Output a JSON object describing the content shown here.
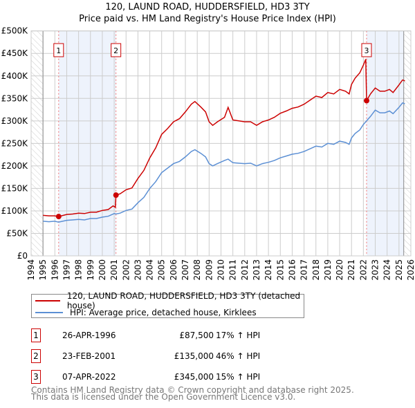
{
  "chart_data": {
    "type": "line",
    "title": "120, LAUND ROAD, HUDDERSFIELD, HD3 3TY",
    "subtitle": "Price paid vs. HM Land Registry's House Price Index (HPI)",
    "xlim": [
      1994,
      2026
    ],
    "ylim": [
      0,
      500000
    ],
    "x_ticks": [
      "1994",
      "1995",
      "1996",
      "1997",
      "1998",
      "1999",
      "2000",
      "2001",
      "2002",
      "2003",
      "2004",
      "2005",
      "2006",
      "2007",
      "2008",
      "2009",
      "2010",
      "2011",
      "2012",
      "2013",
      "2014",
      "2015",
      "2016",
      "2017",
      "2018",
      "2019",
      "2020",
      "2021",
      "2022",
      "2023",
      "2024",
      "2025",
      "2026"
    ],
    "y_ticks": [
      {
        "v": 0,
        "label": "£0"
      },
      {
        "v": 50000,
        "label": "£50K"
      },
      {
        "v": 100000,
        "label": "£100K"
      },
      {
        "v": 150000,
        "label": "£150K"
      },
      {
        "v": 200000,
        "label": "£200K"
      },
      {
        "v": 250000,
        "label": "£250K"
      },
      {
        "v": 300000,
        "label": "£300K"
      },
      {
        "v": 350000,
        "label": "£350K"
      },
      {
        "v": 400000,
        "label": "£400K"
      },
      {
        "v": 450000,
        "label": "£450K"
      },
      {
        "v": 500000,
        "label": "£500K"
      }
    ],
    "grid": true,
    "series": [
      {
        "name": "120, LAUND ROAD, HUDDERSFIELD, HD3 3TY (detached house)",
        "color": "#cc0000",
        "points": [
          [
            1995,
            90
          ],
          [
            1995.5,
            89
          ],
          [
            1996.0,
            89
          ],
          [
            1996.32,
            87.5
          ],
          [
            1997,
            92
          ],
          [
            1997.5,
            93
          ],
          [
            1998,
            95
          ],
          [
            1998.5,
            94
          ],
          [
            1999,
            97
          ],
          [
            1999.5,
            97
          ],
          [
            2000,
            101
          ],
          [
            2000.5,
            103
          ],
          [
            2000.9,
            111
          ],
          [
            2001.1,
            108
          ],
          [
            2001.15,
            135
          ],
          [
            2001.5,
            138
          ],
          [
            2002,
            147
          ],
          [
            2002.5,
            151
          ],
          [
            2003,
            172
          ],
          [
            2003.5,
            190
          ],
          [
            2004,
            218
          ],
          [
            2004.5,
            240
          ],
          [
            2005,
            270
          ],
          [
            2005.5,
            283
          ],
          [
            2006,
            298
          ],
          [
            2006.5,
            305
          ],
          [
            2007,
            320
          ],
          [
            2007.5,
            337
          ],
          [
            2007.8,
            343
          ],
          [
            2008.3,
            331
          ],
          [
            2008.7,
            320
          ],
          [
            2009,
            298
          ],
          [
            2009.3,
            290
          ],
          [
            2009.7,
            298
          ],
          [
            2010.3,
            308
          ],
          [
            2010.6,
            330
          ],
          [
            2011,
            302
          ],
          [
            2011.5,
            300
          ],
          [
            2012,
            298
          ],
          [
            2012.5,
            298
          ],
          [
            2013,
            290
          ],
          [
            2013.5,
            298
          ],
          [
            2014,
            302
          ],
          [
            2014.5,
            308
          ],
          [
            2015,
            317
          ],
          [
            2015.5,
            322
          ],
          [
            2016,
            328
          ],
          [
            2016.5,
            331
          ],
          [
            2017,
            337
          ],
          [
            2017.5,
            346
          ],
          [
            2018,
            355
          ],
          [
            2018.5,
            352
          ],
          [
            2019,
            363
          ],
          [
            2019.5,
            360
          ],
          [
            2020,
            370
          ],
          [
            2020.5,
            366
          ],
          [
            2020.8,
            360
          ],
          [
            2021,
            381
          ],
          [
            2021.3,
            395
          ],
          [
            2021.7,
            407
          ],
          [
            2022,
            424
          ],
          [
            2022.2,
            437
          ],
          [
            2022.27,
            345
          ],
          [
            2022.6,
            360
          ],
          [
            2023,
            373
          ],
          [
            2023.4,
            366
          ],
          [
            2023.8,
            366
          ],
          [
            2024.2,
            370
          ],
          [
            2024.5,
            363
          ],
          [
            2025,
            380
          ],
          [
            2025.3,
            391
          ],
          [
            2025.5,
            389
          ]
        ]
      },
      {
        "name": "HPI: Average price, detached house, Kirklees",
        "color": "#5b8fd4",
        "points": [
          [
            1995,
            77
          ],
          [
            1995.5,
            76
          ],
          [
            1996,
            77
          ],
          [
            1996.3,
            75
          ],
          [
            1997,
            79
          ],
          [
            1997.5,
            80
          ],
          [
            1998,
            81
          ],
          [
            1998.5,
            80
          ],
          [
            1999,
            83
          ],
          [
            1999.5,
            83
          ],
          [
            2000,
            86
          ],
          [
            2000.5,
            88
          ],
          [
            2001,
            94
          ],
          [
            2001.15,
            93
          ],
          [
            2001.5,
            95
          ],
          [
            2002,
            101
          ],
          [
            2002.5,
            104
          ],
          [
            2003,
            118
          ],
          [
            2003.5,
            130
          ],
          [
            2004,
            150
          ],
          [
            2004.5,
            165
          ],
          [
            2005,
            185
          ],
          [
            2005.5,
            195
          ],
          [
            2006,
            205
          ],
          [
            2006.5,
            210
          ],
          [
            2007,
            220
          ],
          [
            2007.5,
            232
          ],
          [
            2007.8,
            236
          ],
          [
            2008.3,
            228
          ],
          [
            2008.7,
            220
          ],
          [
            2009,
            205
          ],
          [
            2009.3,
            200
          ],
          [
            2009.7,
            205
          ],
          [
            2010.3,
            212
          ],
          [
            2010.6,
            215
          ],
          [
            2011,
            207
          ],
          [
            2011.5,
            206
          ],
          [
            2012,
            205
          ],
          [
            2012.5,
            206
          ],
          [
            2013,
            200
          ],
          [
            2013.5,
            205
          ],
          [
            2014,
            208
          ],
          [
            2014.5,
            212
          ],
          [
            2015,
            218
          ],
          [
            2015.5,
            222
          ],
          [
            2016,
            226
          ],
          [
            2016.5,
            228
          ],
          [
            2017,
            232
          ],
          [
            2017.5,
            238
          ],
          [
            2018,
            244
          ],
          [
            2018.5,
            242
          ],
          [
            2019,
            250
          ],
          [
            2019.5,
            248
          ],
          [
            2020,
            255
          ],
          [
            2020.5,
            252
          ],
          [
            2020.8,
            248
          ],
          [
            2021,
            262
          ],
          [
            2021.3,
            272
          ],
          [
            2021.7,
            280
          ],
          [
            2022,
            292
          ],
          [
            2022.27,
            300
          ],
          [
            2022.6,
            310
          ],
          [
            2023,
            324
          ],
          [
            2023.4,
            318
          ],
          [
            2023.8,
            318
          ],
          [
            2024.2,
            322
          ],
          [
            2024.5,
            316
          ],
          [
            2025,
            330
          ],
          [
            2025.3,
            340
          ],
          [
            2025.5,
            338
          ]
        ]
      }
    ],
    "sales": [
      {
        "n": "1",
        "x": 1996.32,
        "value": 87500,
        "date": "26-APR-1996",
        "price": "£87,500",
        "hpi": "17% ↑ HPI"
      },
      {
        "n": "2",
        "x": 2001.15,
        "value": 135000,
        "date": "23-FEB-2001",
        "price": "£135,000",
        "hpi": "46% ↑ HPI"
      },
      {
        "n": "3",
        "x": 2022.27,
        "value": 345000,
        "date": "07-APR-2022",
        "price": "£345,000",
        "hpi": "15% ↑ HPI"
      }
    ],
    "shaded_ranges": [
      [
        1996.32,
        2001.15
      ],
      [
        2022.27,
        2025.4
      ]
    ],
    "hatched_ranges": [
      [
        1994,
        1995
      ],
      [
        2025.4,
        2026
      ]
    ],
    "legend_placement": "below"
  },
  "footer": {
    "line1": "Contains HM Land Registry data © Crown copyright and database right 2025.",
    "line2": "This data is licensed under the Open Government Licence v3.0."
  }
}
